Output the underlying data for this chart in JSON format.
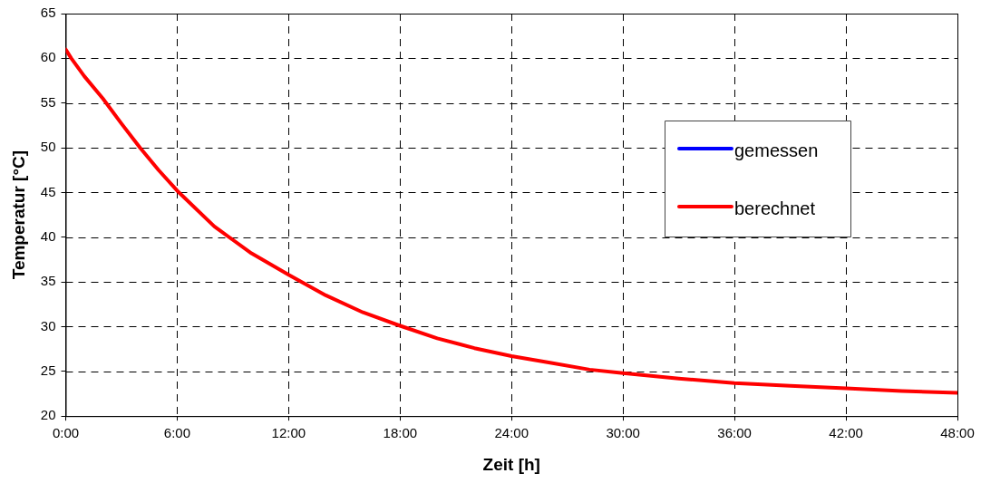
{
  "chart_data": {
    "type": "line",
    "xlabel": "Zeit [h]",
    "ylabel": "Temperatur [°C]",
    "x": [
      0,
      0.3,
      1,
      2,
      3,
      4,
      5,
      6,
      8,
      10,
      12,
      14,
      16,
      18,
      20,
      22,
      24,
      26,
      28.2,
      30,
      33,
      36,
      39,
      42,
      45,
      48
    ],
    "series": [
      {
        "name": "gemessen",
        "color": "#0000ff",
        "values": [
          null,
          null,
          null,
          null,
          null,
          null,
          null,
          null,
          null,
          null,
          null,
          null,
          null,
          null,
          null,
          null,
          null,
          null,
          null,
          null,
          null,
          null,
          null,
          null,
          null,
          null
        ]
      },
      {
        "name": "berechnet",
        "color": "#ff0000",
        "values": [
          61,
          60,
          58,
          55.5,
          52.7,
          50,
          47.5,
          45.2,
          41.2,
          38.2,
          35.8,
          33.5,
          31.6,
          30.1,
          28.7,
          27.6,
          26.7,
          26,
          25.2,
          24.8,
          24.2,
          23.7,
          23.4,
          23.1,
          22.8,
          22.6
        ]
      }
    ],
    "xlim": [
      0,
      48
    ],
    "xticks": [
      {
        "value": 0,
        "label": "0:00"
      },
      {
        "value": 6,
        "label": "6:00"
      },
      {
        "value": 12,
        "label": "12:00"
      },
      {
        "value": 18,
        "label": "18:00"
      },
      {
        "value": 24,
        "label": "24:00"
      },
      {
        "value": 30,
        "label": "30:00"
      },
      {
        "value": 36,
        "label": "36:00"
      },
      {
        "value": 42,
        "label": "42:00"
      },
      {
        "value": 48,
        "label": "48:00"
      }
    ],
    "ylim": [
      20,
      65
    ],
    "yticks": [
      20,
      25,
      30,
      35,
      40,
      45,
      50,
      55,
      60,
      65
    ],
    "grid": true,
    "legend": "right",
    "marker": "none",
    "line_style": "solid"
  }
}
